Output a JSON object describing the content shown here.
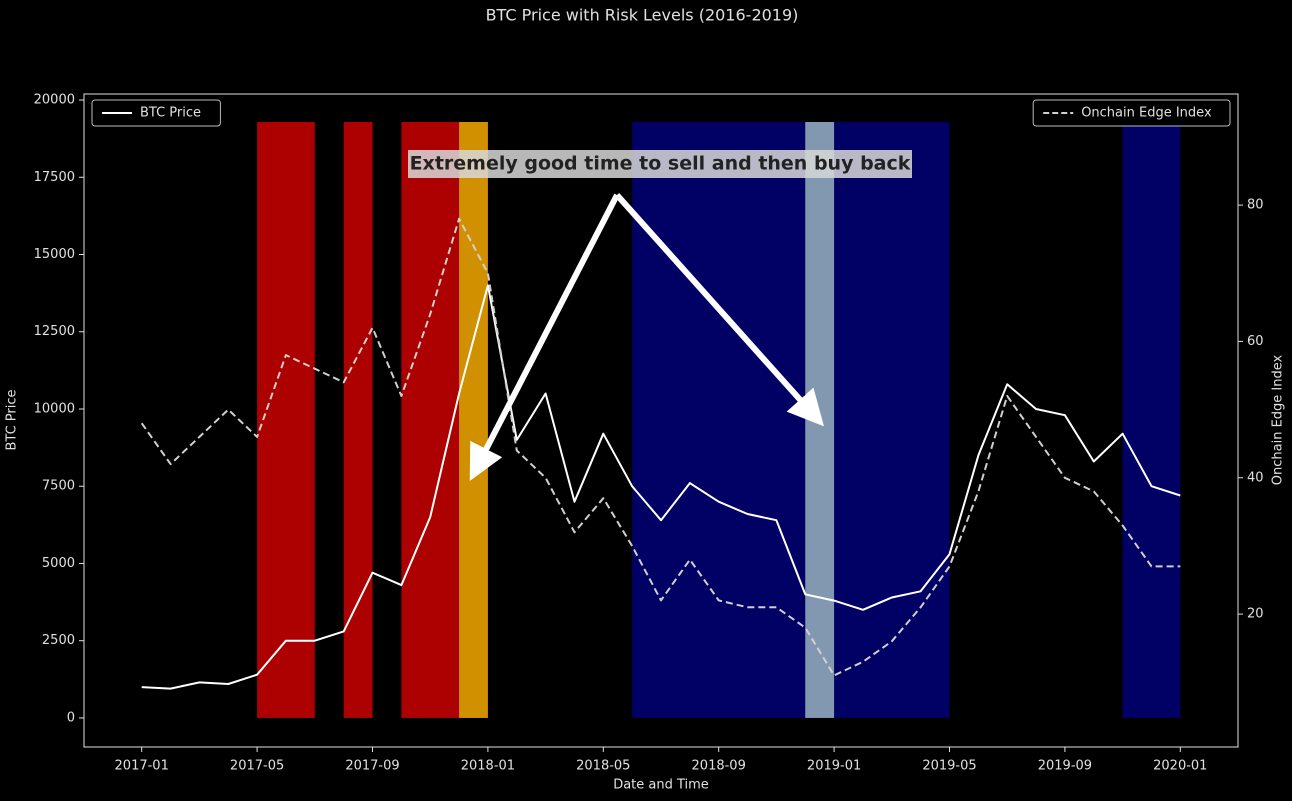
{
  "chart_data": {
    "type": "line",
    "title": "BTC Price with Risk Levels (2016-2019)",
    "x_label": "Date and Time",
    "y_label": "BTC Price",
    "y2_label": "Onchain Edge Index",
    "annotation": "Extremely good time to sell and then buy back",
    "x": [
      "2017-01",
      "2017-02",
      "2017-03",
      "2017-04",
      "2017-05",
      "2017-06",
      "2017-07",
      "2017-08",
      "2017-09",
      "2017-10",
      "2017-11",
      "2017-12",
      "2018-01",
      "2018-02",
      "2018-03",
      "2018-04",
      "2018-05",
      "2018-06",
      "2018-07",
      "2018-08",
      "2018-09",
      "2018-10",
      "2018-11",
      "2018-12",
      "2019-01",
      "2019-02",
      "2019-03",
      "2019-04",
      "2019-05",
      "2019-06",
      "2019-07",
      "2019-08",
      "2019-09",
      "2019-10",
      "2019-11",
      "2019-12",
      "2020-01"
    ],
    "series": [
      {
        "name": "BTC Price",
        "color": "#ffffff",
        "dash": false,
        "legend": "upper left",
        "values": [
          1000,
          950,
          1150,
          1100,
          1400,
          2500,
          2500,
          2800,
          4700,
          4300,
          6500,
          10500,
          14000,
          9000,
          10500,
          7000,
          9200,
          7500,
          6400,
          7600,
          7000,
          6600,
          6400,
          4000,
          3800,
          3500,
          3900,
          4100,
          5300,
          8500,
          10800,
          10000,
          9800,
          8300,
          9200,
          7500,
          7200
        ]
      },
      {
        "name": "Onchain Edge Index",
        "color": "#d0d0d0",
        "dash": true,
        "axis": "y2",
        "legend": "upper right",
        "values": [
          48,
          42,
          46,
          50,
          46,
          58,
          56,
          54,
          62,
          52,
          64,
          78,
          70,
          44,
          40,
          32,
          37,
          30,
          22,
          28,
          22,
          21,
          21,
          18,
          11,
          13,
          16,
          21,
          27,
          38,
          52,
          46,
          40,
          38,
          33,
          27,
          27
        ]
      }
    ],
    "risk_spans": [
      {
        "start": "2017-05",
        "end": "2017-07",
        "color": "#c00000"
      },
      {
        "start": "2017-08",
        "end": "2017-09",
        "color": "#c00000"
      },
      {
        "start": "2017-10",
        "end": "2018-01",
        "color": "#c00000"
      },
      {
        "start": "2017-12",
        "end": "2018-01",
        "color": "#d4a000"
      },
      {
        "start": "2018-06",
        "end": "2019-05",
        "color": "#000070"
      },
      {
        "start": "2018-12",
        "end": "2019-01",
        "color": "#8fa8b8"
      },
      {
        "start": "2019-11",
        "end": "2020-01",
        "color": "#000070"
      }
    ],
    "xlim": [
      "2016-11",
      "2020-03"
    ],
    "xticks": [
      "2017-01",
      "2017-05",
      "2017-09",
      "2018-01",
      "2018-05",
      "2018-09",
      "2019-01",
      "2019-05",
      "2019-09",
      "2020-01"
    ],
    "ylim": [
      -940,
      20195
    ],
    "yticks": [
      0,
      2500,
      5000,
      7500,
      10000,
      12500,
      15000,
      17500,
      20000
    ],
    "y2lim": [
      0.5,
      96.3
    ],
    "y2ticks": [
      20,
      40,
      60,
      80
    ]
  }
}
